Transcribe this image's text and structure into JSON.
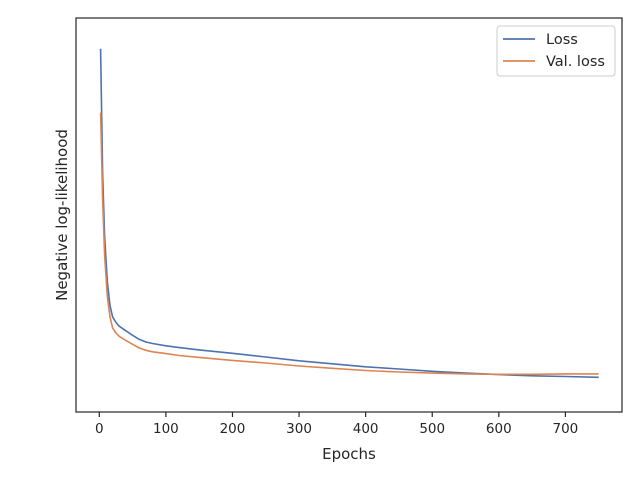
{
  "chart_data": {
    "type": "line",
    "xlabel": "Epochs",
    "ylabel": "Negative log-likelihood",
    "xlim": [
      -35,
      785
    ],
    "ylim": [
      0.0,
      1.0
    ],
    "x_ticks": [
      0,
      100,
      200,
      300,
      400,
      500,
      600,
      700
    ],
    "y_ticks_visible": false,
    "grid": false,
    "legend": "top-right",
    "series": [
      {
        "name": "Loss",
        "color": "#4c72b0",
        "points": [
          [
            2,
            0.95
          ],
          [
            5,
            0.62
          ],
          [
            8,
            0.45
          ],
          [
            12,
            0.33
          ],
          [
            16,
            0.265
          ],
          [
            20,
            0.235
          ],
          [
            25,
            0.22
          ],
          [
            30,
            0.21
          ],
          [
            40,
            0.198
          ],
          [
            50,
            0.186
          ],
          [
            60,
            0.175
          ],
          [
            70,
            0.168
          ],
          [
            80,
            0.164
          ],
          [
            100,
            0.158
          ],
          [
            120,
            0.153
          ],
          [
            150,
            0.147
          ],
          [
            200,
            0.138
          ],
          [
            250,
            0.128
          ],
          [
            300,
            0.118
          ],
          [
            350,
            0.11
          ],
          [
            400,
            0.102
          ],
          [
            450,
            0.096
          ],
          [
            500,
            0.09
          ],
          [
            550,
            0.085
          ],
          [
            600,
            0.081
          ],
          [
            650,
            0.078
          ],
          [
            700,
            0.076
          ],
          [
            750,
            0.074
          ]
        ]
      },
      {
        "name": "Val. loss",
        "color": "#dd8452",
        "points": [
          [
            2,
            0.78
          ],
          [
            5,
            0.55
          ],
          [
            8,
            0.4
          ],
          [
            12,
            0.29
          ],
          [
            16,
            0.235
          ],
          [
            20,
            0.205
          ],
          [
            25,
            0.192
          ],
          [
            30,
            0.183
          ],
          [
            40,
            0.172
          ],
          [
            50,
            0.162
          ],
          [
            60,
            0.152
          ],
          [
            70,
            0.146
          ],
          [
            80,
            0.142
          ],
          [
            100,
            0.137
          ],
          [
            120,
            0.132
          ],
          [
            150,
            0.127
          ],
          [
            200,
            0.119
          ],
          [
            250,
            0.112
          ],
          [
            300,
            0.104
          ],
          [
            350,
            0.098
          ],
          [
            400,
            0.092
          ],
          [
            450,
            0.088
          ],
          [
            500,
            0.085
          ],
          [
            550,
            0.083
          ],
          [
            600,
            0.082
          ],
          [
            650,
            0.082
          ],
          [
            700,
            0.083
          ],
          [
            750,
            0.083
          ]
        ]
      }
    ]
  }
}
